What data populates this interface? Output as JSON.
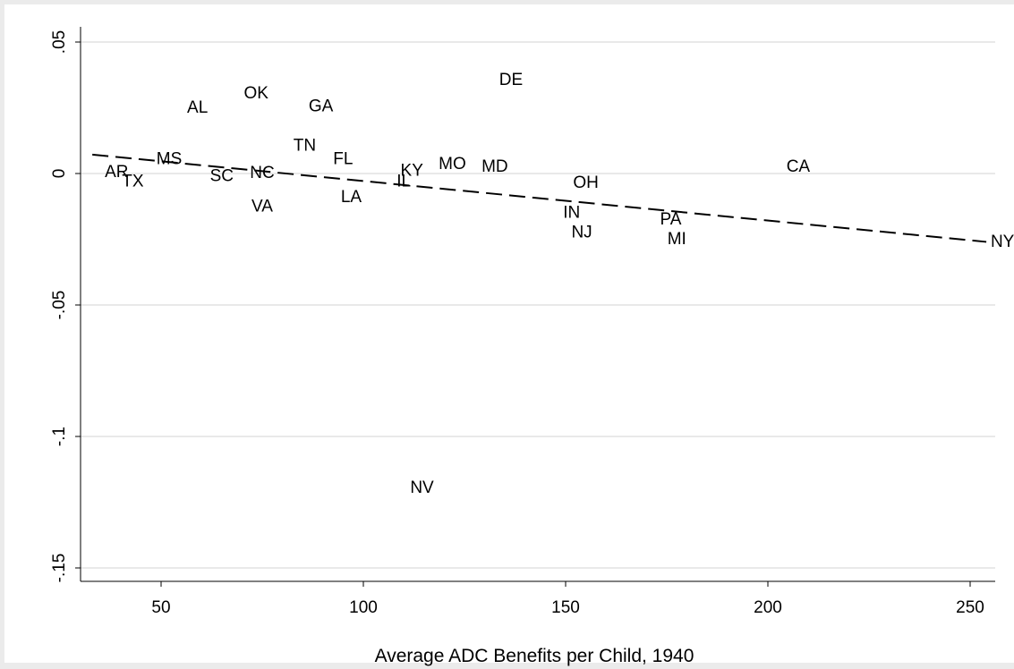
{
  "chart_data": {
    "type": "scatter",
    "title": "",
    "xlabel": "Average ADC Benefits per Child, 1940",
    "ylabel": "",
    "xlim": [
      30,
      256
    ],
    "ylim": [
      -0.155,
      0.053
    ],
    "x_ticks": [
      {
        "value": 50,
        "label": "50"
      },
      {
        "value": 100,
        "label": "100"
      },
      {
        "value": 150,
        "label": "150"
      },
      {
        "value": 200,
        "label": "200"
      },
      {
        "value": 250,
        "label": "250"
      }
    ],
    "y_ticks": [
      {
        "value": 0.05,
        "label": ".05"
      },
      {
        "value": 0,
        "label": "0"
      },
      {
        "value": -0.05,
        "label": "-.05"
      },
      {
        "value": -0.1,
        "label": "-.1"
      },
      {
        "value": -0.15,
        "label": "-.15"
      }
    ],
    "grid": "horizontal",
    "marker": "state-label",
    "points": [
      {
        "label": "AR",
        "x": 39,
        "y": 0.0005
      },
      {
        "label": "TX",
        "x": 43,
        "y": -0.003
      },
      {
        "label": "MS",
        "x": 52,
        "y": 0.0055
      },
      {
        "label": "AL",
        "x": 59,
        "y": 0.025
      },
      {
        "label": "SC",
        "x": 65,
        "y": -0.001
      },
      {
        "label": "OK",
        "x": 73.5,
        "y": 0.0305
      },
      {
        "label": "NC",
        "x": 75,
        "y": 0.0002
      },
      {
        "label": "VA",
        "x": 75,
        "y": -0.0125
      },
      {
        "label": "TN",
        "x": 85.5,
        "y": 0.0105
      },
      {
        "label": "GA",
        "x": 89.5,
        "y": 0.0255
      },
      {
        "label": "FL",
        "x": 95,
        "y": 0.0055
      },
      {
        "label": "LA",
        "x": 97,
        "y": -0.009
      },
      {
        "label": "IL",
        "x": 110,
        "y": -0.003
      },
      {
        "label": "KY",
        "x": 112,
        "y": 0.001
      },
      {
        "label": "MO",
        "x": 122,
        "y": 0.0035
      },
      {
        "label": "MD",
        "x": 132.5,
        "y": 0.0025
      },
      {
        "label": "DE",
        "x": 136.5,
        "y": 0.0355
      },
      {
        "label": "NV",
        "x": 114.5,
        "y": -0.1195
      },
      {
        "label": "IN",
        "x": 151.5,
        "y": -0.015
      },
      {
        "label": "NJ",
        "x": 154,
        "y": -0.0225
      },
      {
        "label": "OH",
        "x": 155,
        "y": -0.0035
      },
      {
        "label": "PA",
        "x": 176,
        "y": -0.0175
      },
      {
        "label": "MI",
        "x": 177.5,
        "y": -0.025
      },
      {
        "label": "CA",
        "x": 207.5,
        "y": 0.0025
      },
      {
        "label": "NY",
        "x": 258,
        "y": -0.026
      }
    ],
    "fit_line": {
      "style": "dashed",
      "x": [
        33,
        254
      ],
      "y": [
        0.0072,
        -0.026
      ]
    }
  }
}
